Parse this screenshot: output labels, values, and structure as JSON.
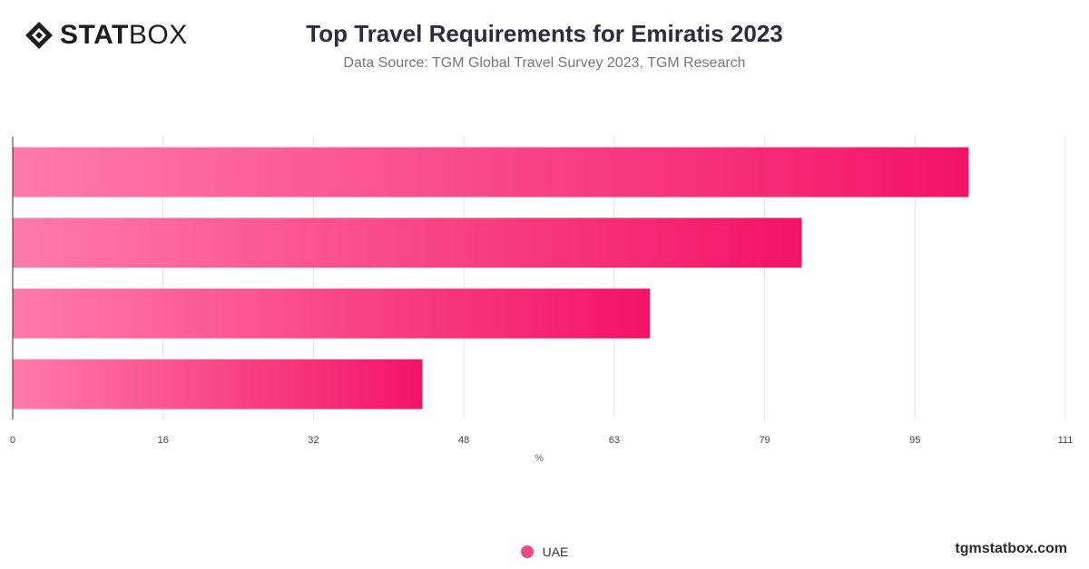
{
  "header": {
    "logo_bold": "STAT",
    "logo_light": "BOX",
    "title": "Top Travel Requirements for Emiratis 2023",
    "subtitle": "Data Source: TGM Global Travel Survey 2023, TGM Research"
  },
  "footer": {
    "site": "tgmstatbox.com"
  },
  "colors": {
    "bar_start": "#ff7bab",
    "bar_end": "#f21466",
    "accent": "#f0487f"
  },
  "chart_data": {
    "type": "bar",
    "orientation": "horizontal",
    "categories": [
      "",
      "",
      "",
      ""
    ],
    "series": [
      {
        "name": "UAE",
        "values": [
          100.8,
          83.2,
          67.2,
          43.2
        ]
      }
    ],
    "xlabel": "%",
    "ylabel": "",
    "xlim": [
      0,
      111
    ],
    "xticks": [
      "0",
      "16",
      "32",
      "48",
      "63",
      "79",
      "95",
      "111"
    ],
    "grid": true,
    "legend_position": "bottom-center"
  }
}
